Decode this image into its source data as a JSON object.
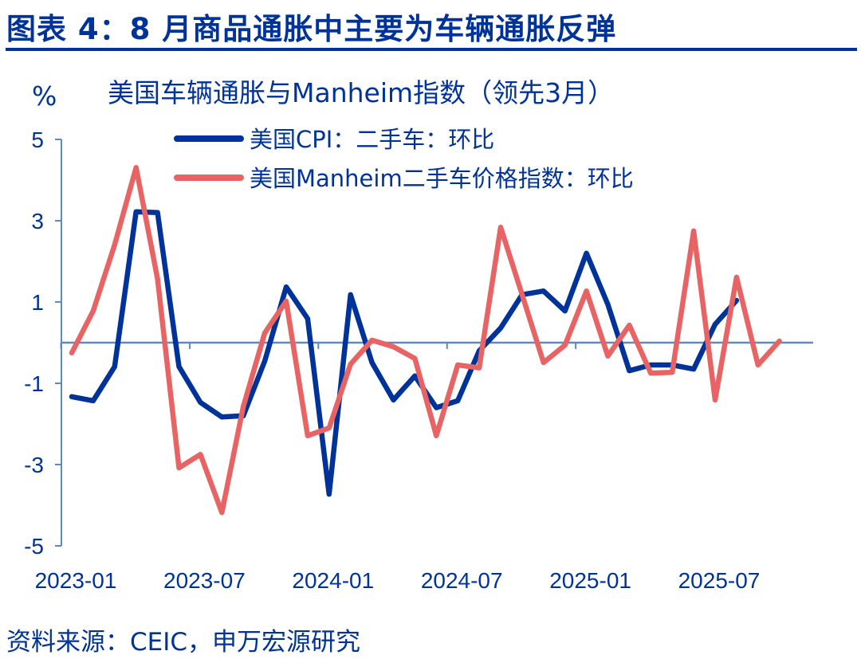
{
  "figure_title": "图表 4：8 月商品通胀中主要为车辆通胀反弹",
  "source": "资料来源：CEIC，申万宏源研究",
  "colors": {
    "accent": "#003399",
    "cpi": "#003399",
    "manheim": "#E86464",
    "axis": "#5B8AC6"
  },
  "chart_data": {
    "type": "line",
    "title": "美国车辆通胀与Manheim指数（领先3月）",
    "ylabel": "%",
    "ylim": [
      -5,
      5
    ],
    "yticks": [
      5,
      3,
      1,
      -1,
      -3,
      -5
    ],
    "xtick_labels": [
      "2023-01",
      "2023-07",
      "2024-01",
      "2024-07",
      "2025-01",
      "2025-07"
    ],
    "legend_position": "top",
    "grid": false,
    "x": [
      "2023-01",
      "2023-02",
      "2023-03",
      "2023-04",
      "2023-05",
      "2023-06",
      "2023-07",
      "2023-08",
      "2023-09",
      "2023-10",
      "2023-11",
      "2023-12",
      "2024-01",
      "2024-02",
      "2024-03",
      "2024-04",
      "2024-05",
      "2024-06",
      "2024-07",
      "2024-08",
      "2024-09",
      "2024-10",
      "2024-11",
      "2024-12",
      "2025-01",
      "2025-02",
      "2025-03",
      "2025-04",
      "2025-05",
      "2025-06",
      "2025-07",
      "2025-08",
      "2025-09",
      "2025-10"
    ],
    "series": [
      {
        "name": "美国CPI：二手车：环比",
        "color": "#003399",
        "values": [
          -1.33,
          -1.43,
          -0.59,
          3.22,
          3.2,
          -0.59,
          -1.47,
          -1.83,
          -1.8,
          -0.45,
          1.37,
          0.59,
          -3.73,
          1.18,
          -0.49,
          -1.41,
          -0.82,
          -1.6,
          -1.43,
          -0.2,
          0.36,
          1.18,
          1.27,
          0.78,
          2.2,
          0.94,
          -0.69,
          -0.55,
          -0.55,
          -0.65,
          0.45,
          1.04,
          null,
          null
        ]
      },
      {
        "name": "美国Manheim二手车价格指数：环比",
        "color": "#E86464",
        "values": [
          -0.25,
          0.78,
          2.41,
          4.31,
          1.57,
          -3.08,
          -2.75,
          -4.18,
          -1.57,
          0.24,
          1.02,
          -2.29,
          -2.1,
          -0.53,
          0.06,
          -0.1,
          -0.39,
          -2.29,
          -0.55,
          -0.62,
          2.84,
          1.18,
          -0.49,
          -0.06,
          1.27,
          -0.33,
          0.43,
          -0.75,
          -0.73,
          2.75,
          -1.41,
          1.61,
          -0.55,
          0.04
        ]
      }
    ]
  }
}
